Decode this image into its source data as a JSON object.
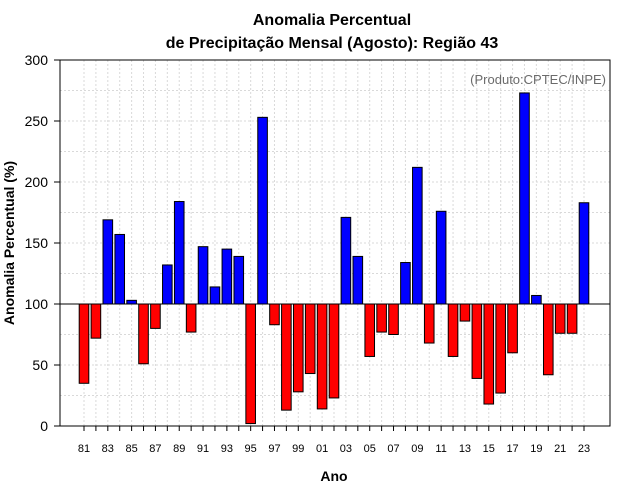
{
  "chart_data": {
    "type": "bar",
    "title_line1": "Anomalia Percentual",
    "title_line2": "de Precipitação Mensal (Agosto): Região 43",
    "xlabel": "Ano",
    "ylabel": "Anomalia Percentual (%)",
    "credit": "(Produto:CPTEC/INPE)",
    "ylim": [
      0,
      300
    ],
    "yticks": [
      0,
      50,
      100,
      150,
      200,
      250,
      300
    ],
    "baseline": 100,
    "grid": true,
    "colors": {
      "above": "#0000ff",
      "below": "#ff0000",
      "outline": "#000000",
      "grid": "#d9d9d9"
    },
    "categories": [
      "81",
      "82",
      "83",
      "84",
      "85",
      "86",
      "87",
      "88",
      "89",
      "90",
      "91",
      "92",
      "93",
      "94",
      "95",
      "96",
      "97",
      "98",
      "99",
      "00",
      "01",
      "02",
      "03",
      "04",
      "05",
      "06",
      "07",
      "08",
      "09",
      "10",
      "11",
      "12",
      "13",
      "14",
      "15",
      "16",
      "17",
      "18",
      "19",
      "20",
      "21",
      "22",
      "23"
    ],
    "xtick_labels": [
      "81",
      "83",
      "85",
      "87",
      "89",
      "91",
      "93",
      "95",
      "97",
      "99",
      "01",
      "03",
      "05",
      "07",
      "09",
      "11",
      "13",
      "15",
      "17",
      "19",
      "21",
      "23"
    ],
    "values": [
      35,
      72,
      169,
      157,
      103,
      51,
      80,
      132,
      184,
      77,
      147,
      114,
      145,
      139,
      2,
      253,
      83,
      13,
      28,
      43,
      14,
      23,
      171,
      139,
      57,
      77,
      75,
      134,
      212,
      68,
      176,
      57,
      86,
      39,
      18,
      27,
      60,
      273,
      107,
      42,
      76,
      76,
      183
    ]
  }
}
